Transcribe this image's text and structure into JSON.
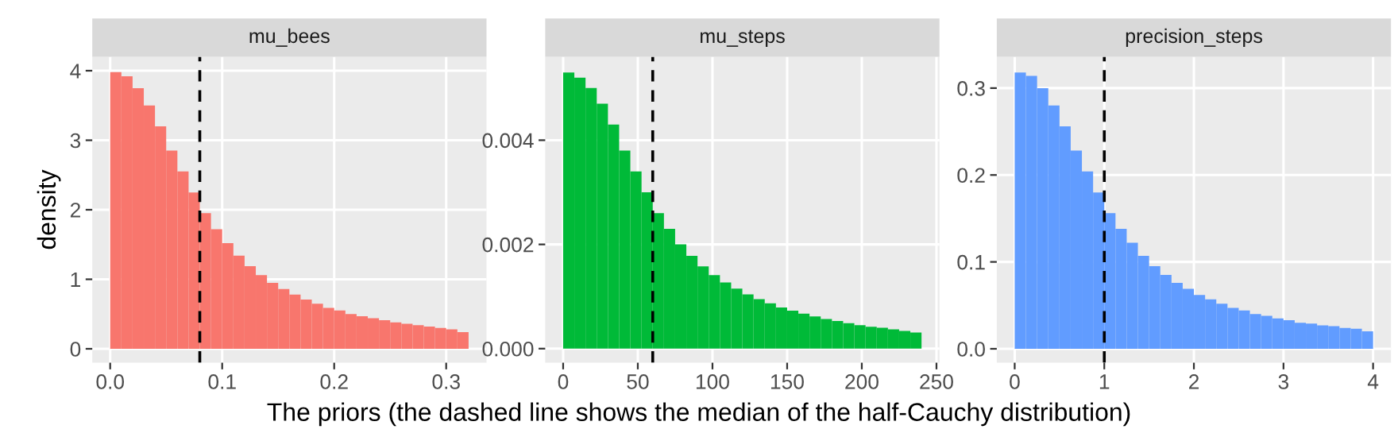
{
  "chart_data": [
    {
      "type": "histogram",
      "title": "mu_bees",
      "ylabel": "density",
      "color": "#f8766d",
      "grid": true,
      "bins": [
        0,
        0.01,
        0.02,
        0.03,
        0.04,
        0.05,
        0.06,
        0.07,
        0.08,
        0.09,
        0.1,
        0.11,
        0.12,
        0.13,
        0.14,
        0.15,
        0.16,
        0.17,
        0.18,
        0.19,
        0.2,
        0.21,
        0.22,
        0.23,
        0.24,
        0.25,
        0.26,
        0.27,
        0.28,
        0.29,
        0.3,
        0.31,
        0.32
      ],
      "values": [
        3.98,
        3.92,
        3.75,
        3.5,
        3.2,
        2.85,
        2.55,
        2.25,
        1.95,
        1.72,
        1.52,
        1.34,
        1.19,
        1.06,
        0.95,
        0.86,
        0.78,
        0.71,
        0.65,
        0.59,
        0.55,
        0.5,
        0.47,
        0.44,
        0.41,
        0.38,
        0.36,
        0.34,
        0.32,
        0.3,
        0.28,
        0.24
      ],
      "xlim": [
        -0.016,
        0.336
      ],
      "xticks": [
        {
          "value": 0,
          "label": "0.0"
        },
        0.1,
        0.2,
        0.3
      ],
      "ylim": [
        -0.2,
        4.2
      ],
      "yticks": [
        0,
        1,
        2,
        3,
        4
      ],
      "ref_lines": [
        {
          "axis": "x",
          "value": 0.08,
          "line_style": "dashed",
          "color": "#000000"
        }
      ]
    },
    {
      "type": "histogram",
      "title": "mu_steps",
      "xlabel": "The priors (the dashed line shows the median of the half-Cauchy distribution)",
      "color": "#00ba38",
      "grid": true,
      "bins": [
        0,
        7.5,
        15,
        22.5,
        30,
        37.5,
        45,
        52.5,
        60,
        67.5,
        75,
        82.5,
        90,
        97.5,
        105,
        112.5,
        120,
        127.5,
        135,
        142.5,
        150,
        157.5,
        165,
        172.5,
        180,
        187.5,
        195,
        202.5,
        210,
        217.5,
        225,
        232.5,
        240
      ],
      "values": [
        0.0053,
        0.0052,
        0.005,
        0.0047,
        0.0043,
        0.0038,
        0.0034,
        0.003,
        0.0026,
        0.0023,
        0.002,
        0.00178,
        0.00158,
        0.00141,
        0.00127,
        0.00115,
        0.00104,
        0.00095,
        0.00087,
        0.00079,
        0.00073,
        0.00067,
        0.00062,
        0.00057,
        0.00053,
        0.00049,
        0.00045,
        0.00042,
        0.0004,
        0.00037,
        0.00034,
        0.00031
      ],
      "xlim": [
        -12,
        252
      ],
      "xticks": [
        0,
        50,
        100,
        150,
        200,
        250
      ],
      "ylim": [
        -0.00027,
        0.0056
      ],
      "yticks": [
        {
          "value": 0,
          "label": "0.000"
        },
        {
          "value": 0.002,
          "label": "0.002"
        },
        {
          "value": 0.004,
          "label": "0.004"
        }
      ],
      "ref_lines": [
        {
          "axis": "x",
          "value": 60,
          "line_style": "dashed",
          "color": "#000000"
        }
      ]
    },
    {
      "type": "histogram",
      "title": "precision_steps",
      "color": "#619cff",
      "grid": true,
      "bins": [
        0,
        0.125,
        0.25,
        0.375,
        0.5,
        0.625,
        0.75,
        0.875,
        1,
        1.125,
        1.25,
        1.375,
        1.5,
        1.625,
        1.75,
        1.875,
        2,
        2.125,
        2.25,
        2.375,
        2.5,
        2.625,
        2.75,
        2.875,
        3,
        3.125,
        3.25,
        3.375,
        3.5,
        3.625,
        3.75,
        3.875,
        4
      ],
      "values": [
        0.318,
        0.314,
        0.3,
        0.28,
        0.256,
        0.228,
        0.204,
        0.18,
        0.156,
        0.138,
        0.122,
        0.107,
        0.095,
        0.085,
        0.076,
        0.069,
        0.062,
        0.057,
        0.052,
        0.047,
        0.044,
        0.04,
        0.038,
        0.035,
        0.033,
        0.03,
        0.029,
        0.027,
        0.026,
        0.024,
        0.023,
        0.02
      ],
      "xlim": [
        -0.2,
        4.2
      ],
      "xticks": [
        0,
        1,
        2,
        3,
        4
      ],
      "ylim": [
        -0.016,
        0.336
      ],
      "yticks": [
        {
          "value": 0,
          "label": "0.0"
        },
        0.1,
        0.2,
        0.3
      ],
      "ref_lines": [
        {
          "axis": "x",
          "value": 1,
          "line_style": "dashed",
          "color": "#000000"
        }
      ]
    }
  ]
}
